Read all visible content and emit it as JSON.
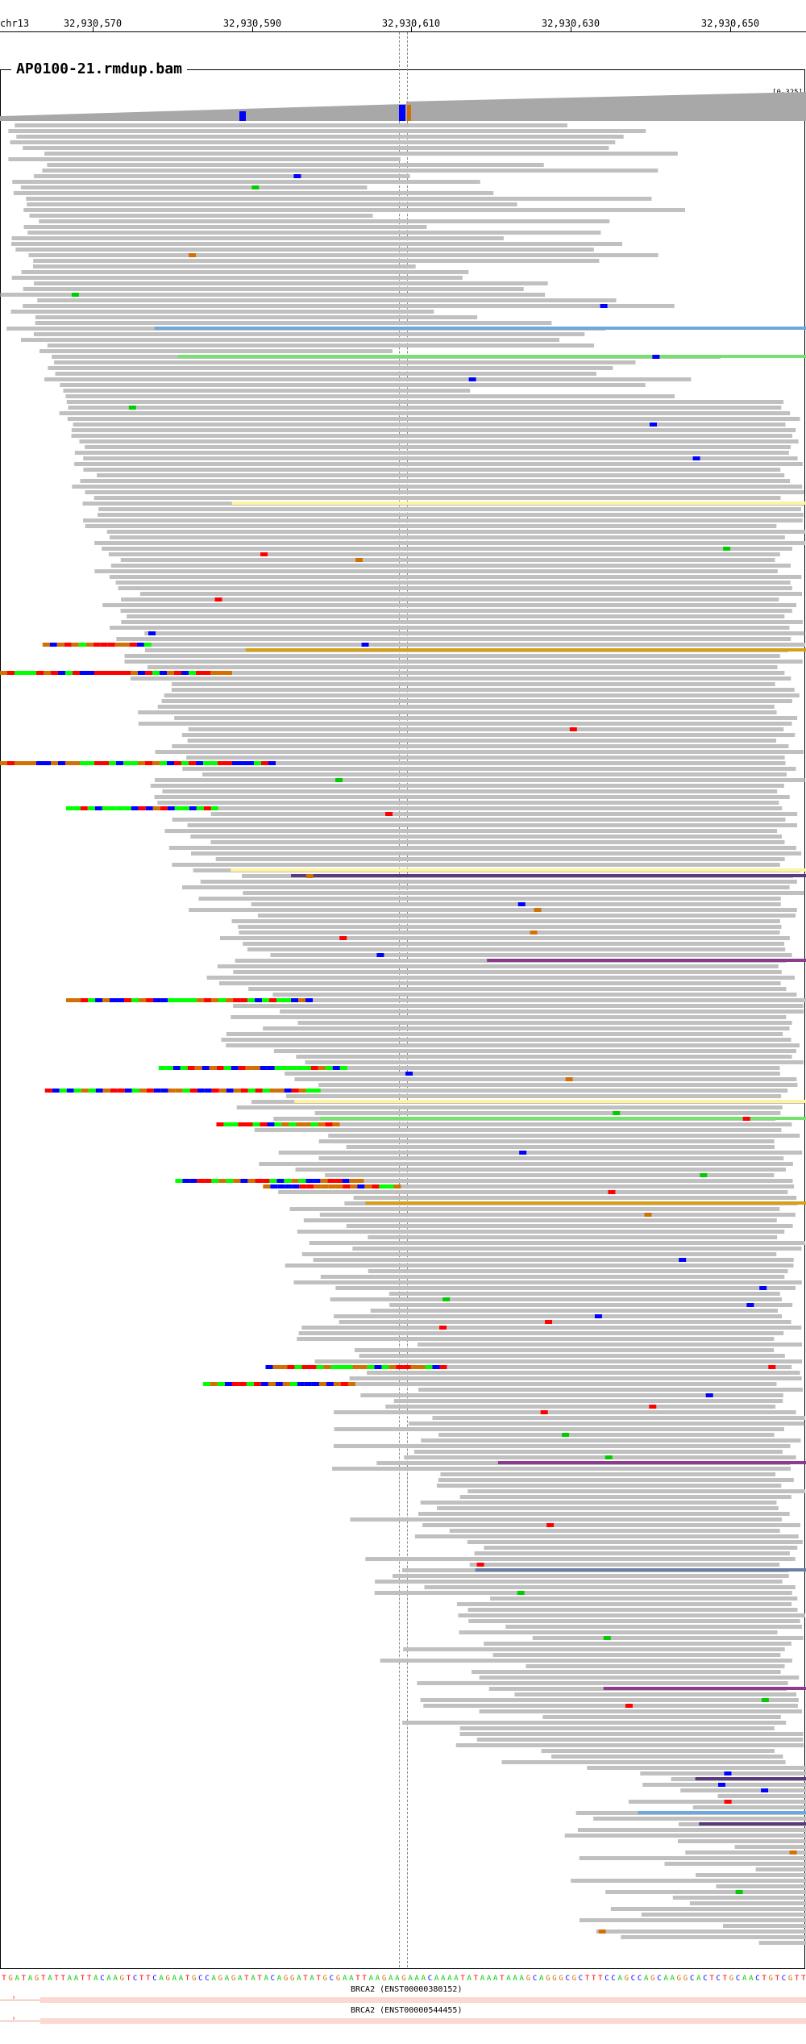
{
  "ruler": {
    "chrom": "chr13",
    "ticks": [
      "32,930,570",
      "32,930,590",
      "32,930,610",
      "32,930,630",
      "32,930,650"
    ]
  },
  "track": {
    "title": "AP0100-21.rmdup.bam",
    "range": "[0-325]"
  },
  "sequence": "TGATAGTATTAATTACAAGTCTTCAGAATGCCAGAGATATACAGGATATGCGAATTAAGAAGAAACAAAATATAAATAAAGCAGGGCGCTTTCCAGCCAGCAAGGCACTCTGCAACTGTCGTT",
  "genes": [
    {
      "label": "BRCA2 (ENST00000380152)"
    },
    {
      "label": "BRCA2 (ENST00000544455)"
    }
  ],
  "colors": {
    "read": "#c0c0c0",
    "coverage": "#a8a8a8",
    "A": "#00cc00",
    "C": "#0000ff",
    "G": "#d17105",
    "T": "#ff0000",
    "soft": [
      "#00ff00",
      "#ff0000",
      "#0000ff",
      "#d17105"
    ],
    "pair_purple": "#5b3a80",
    "pair_blue": "#6fa8dc",
    "pair_gold": "#d4a017",
    "pair_green": "#76e070",
    "pair_magenta": "#8e3a8e",
    "pair_slate": "#6b7fa6",
    "pair_yellow": "#fff3a0",
    "pair_orange": "#d17a4a",
    "gene": "#fcd9d0"
  }
}
